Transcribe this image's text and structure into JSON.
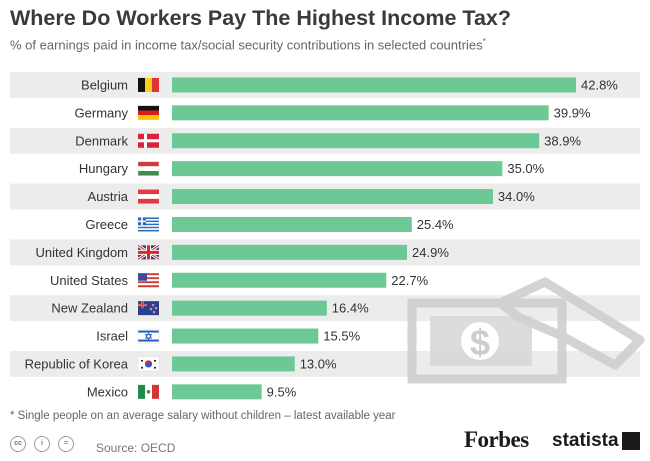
{
  "header": {
    "title": "Where Do Workers Pay The Highest Income Tax?",
    "subtitle": "% of earnings paid in income tax/social security contributions in selected countries",
    "subtitle_mark": "*"
  },
  "chart_data": {
    "type": "bar",
    "orientation": "horizontal",
    "title": "Where Do Workers Pay The Highest Income Tax?",
    "subtitle": "% of earnings paid in income tax/social security contributions in selected countries*",
    "categories": [
      "Belgium",
      "Germany",
      "Denmark",
      "Hungary",
      "Austria",
      "Greece",
      "United Kingdom",
      "United States",
      "New Zealand",
      "Israel",
      "Republic of Korea",
      "Mexico"
    ],
    "values": [
      42.8,
      39.9,
      38.9,
      35.0,
      34.0,
      25.4,
      24.9,
      22.7,
      16.4,
      15.5,
      13.0,
      9.5
    ],
    "data_labels": [
      "42.8%",
      "39.9%",
      "38.9%",
      "35.0%",
      "34.0%",
      "25.4%",
      "24.9%",
      "22.7%",
      "16.4%",
      "15.5%",
      "13.0%",
      "9.5%"
    ],
    "flag_icons": [
      "belgium-flag-icon",
      "germany-flag-icon",
      "denmark-flag-icon",
      "hungary-flag-icon",
      "austria-flag-icon",
      "greece-flag-icon",
      "united-kingdom-flag-icon",
      "united-states-flag-icon",
      "new-zealand-flag-icon",
      "israel-flag-icon",
      "south-korea-flag-icon",
      "mexico-flag-icon"
    ],
    "xlim": [
      0,
      42.8
    ],
    "grid": false,
    "legend": "none",
    "bar_color": "#6cc895",
    "row_stripe_color": "#ececec"
  },
  "footer": {
    "footnote": "* Single people on an average salary without children – latest available year",
    "source": "Source: OECD",
    "brand_forbes": "Forbes",
    "brand_statista": "statista",
    "license_icons": [
      "cc",
      "i",
      "="
    ]
  },
  "decoration": {
    "icon": "hand-holding-dollar-icon",
    "symbol": "$"
  }
}
